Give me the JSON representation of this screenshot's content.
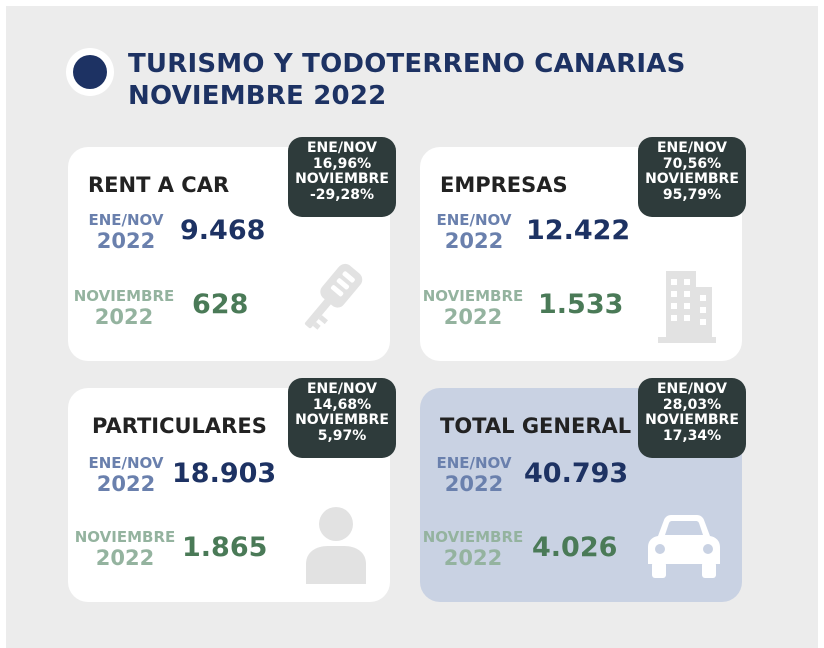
{
  "header": {
    "title_line1": "TURISMO Y TODOTERRENO CANARIAS",
    "title_line2": "NOVIEMBRE 2022"
  },
  "cards": [
    {
      "title": "RENT A CAR",
      "ytd_label": "ENE/NOV",
      "ytd_year": "2022",
      "ytd_value": "9.468",
      "month_label": "NOVIEMBRE",
      "month_year": "2022",
      "month_value": "628",
      "badge": {
        "l1": "ENE/NOV",
        "l2": "16,96%",
        "l3": "NOVIEMBRE",
        "l4": "-29,28%"
      },
      "icon": "car-key-icon"
    },
    {
      "title": "EMPRESAS",
      "ytd_label": "ENE/NOV",
      "ytd_year": "2022",
      "ytd_value": "12.422",
      "month_label": "NOVIEMBRE",
      "month_year": "2022",
      "month_value": "1.533",
      "badge": {
        "l1": "ENE/NOV",
        "l2": "70,56%",
        "l3": "NOVIEMBRE",
        "l4": "95,79%"
      },
      "icon": "building-icon"
    },
    {
      "title": "PARTICULARES",
      "ytd_label": "ENE/NOV",
      "ytd_year": "2022",
      "ytd_value": "18.903",
      "month_label": "NOVIEMBRE",
      "month_year": "2022",
      "month_value": "1.865",
      "badge": {
        "l1": "ENE/NOV",
        "l2": "14,68%",
        "l3": "NOVIEMBRE",
        "l4": "5,97%"
      },
      "icon": "person-icon"
    },
    {
      "title": "TOTAL GENERAL",
      "ytd_label": "ENE/NOV",
      "ytd_year": "2022",
      "ytd_value": "40.793",
      "month_label": "NOVIEMBRE",
      "month_year": "2022",
      "month_value": "4.026",
      "badge": {
        "l1": "ENE/NOV",
        "l2": "28,03%",
        "l3": "NOVIEMBRE",
        "l4": "17,34%"
      },
      "icon": "car-icon"
    }
  ],
  "colors": {
    "navy": "#1d3263",
    "label_blue": "#6a80ad",
    "value_green": "#4a7a57",
    "label_green": "#94b39f",
    "badge_bg": "#2e3b3b",
    "total_card_bg": "#c9d2e3",
    "panel_bg": "#ececec"
  }
}
